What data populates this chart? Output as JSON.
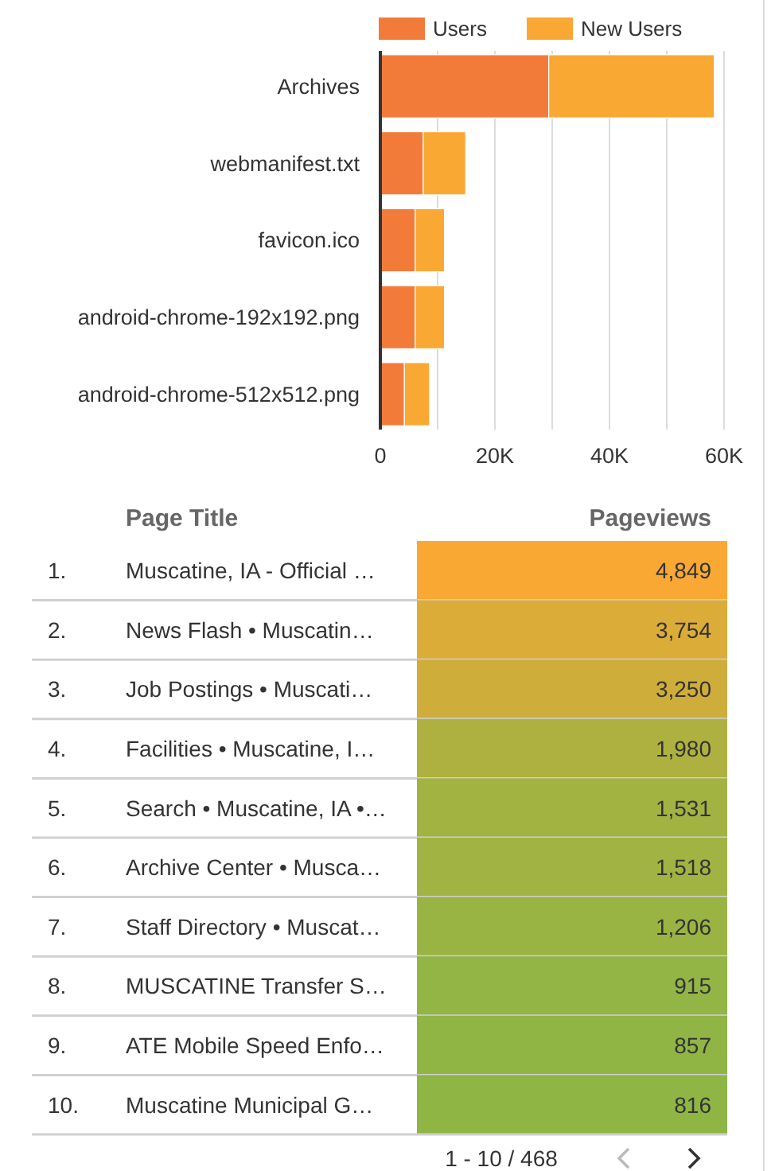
{
  "chart_data": [
    {
      "type": "bar",
      "orientation": "horizontal",
      "stacked": true,
      "categories": [
        "Archives",
        "webmanifest.txt",
        "favicon.ico",
        "android-chrome-192x192.png",
        "android-chrome-512x512.png"
      ],
      "series": [
        {
          "name": "Users",
          "color": "#f37b3a",
          "values": [
            29400,
            7500,
            6100,
            6100,
            4200
          ]
        },
        {
          "name": "New Users",
          "color": "#f9a834",
          "values": [
            28900,
            7400,
            5100,
            5100,
            4400
          ]
        }
      ],
      "xlim": [
        0,
        60000
      ],
      "xticks": [
        0,
        {
          "value": 10000,
          "label": null
        },
        {
          "value": 20000,
          "label": "20K"
        },
        {
          "value": 30000,
          "label": null
        },
        {
          "value": 40000,
          "label": "40K"
        },
        {
          "value": 50000,
          "label": null
        },
        {
          "value": 60000,
          "label": "60K"
        }
      ],
      "grid": "x",
      "legend": "top"
    },
    {
      "type": "heatmap",
      "ylabel": "Page Title",
      "categories": [
        "Pageviews"
      ],
      "y_categories": [
        "1.",
        "2.",
        "3.",
        "4.",
        "5.",
        "6.",
        "7.",
        "8.",
        "9.",
        "10."
      ],
      "y2_categories": [
        "Muscatine, IA - Official …",
        "News Flash • Muscatin…",
        "Job Postings • Muscati…",
        "Facilities • Muscatine, I…",
        "Search • Muscatine, IA •…",
        "Archive Center • Musca…",
        "Staff Directory • Muscat…",
        "MUSCATINE Transfer S…",
        "ATE Mobile Speed Enfo…",
        "Muscatine Municipal G…"
      ],
      "cells": [
        [
          4849
        ],
        [
          3754
        ],
        [
          3250
        ],
        [
          1980
        ],
        [
          1531
        ],
        [
          1518
        ],
        [
          1206
        ],
        [
          915
        ],
        [
          857
        ],
        [
          816
        ]
      ],
      "cell_labels": [
        [
          "4,849"
        ],
        [
          "3,754"
        ],
        [
          "3,250"
        ],
        [
          "1,980"
        ],
        [
          "1,531"
        ],
        [
          "1,518"
        ],
        [
          "1,206"
        ],
        [
          "915"
        ],
        [
          "857"
        ],
        [
          "816"
        ]
      ],
      "annotations": [
        "1 - 10 / 468"
      ]
    }
  ]
}
